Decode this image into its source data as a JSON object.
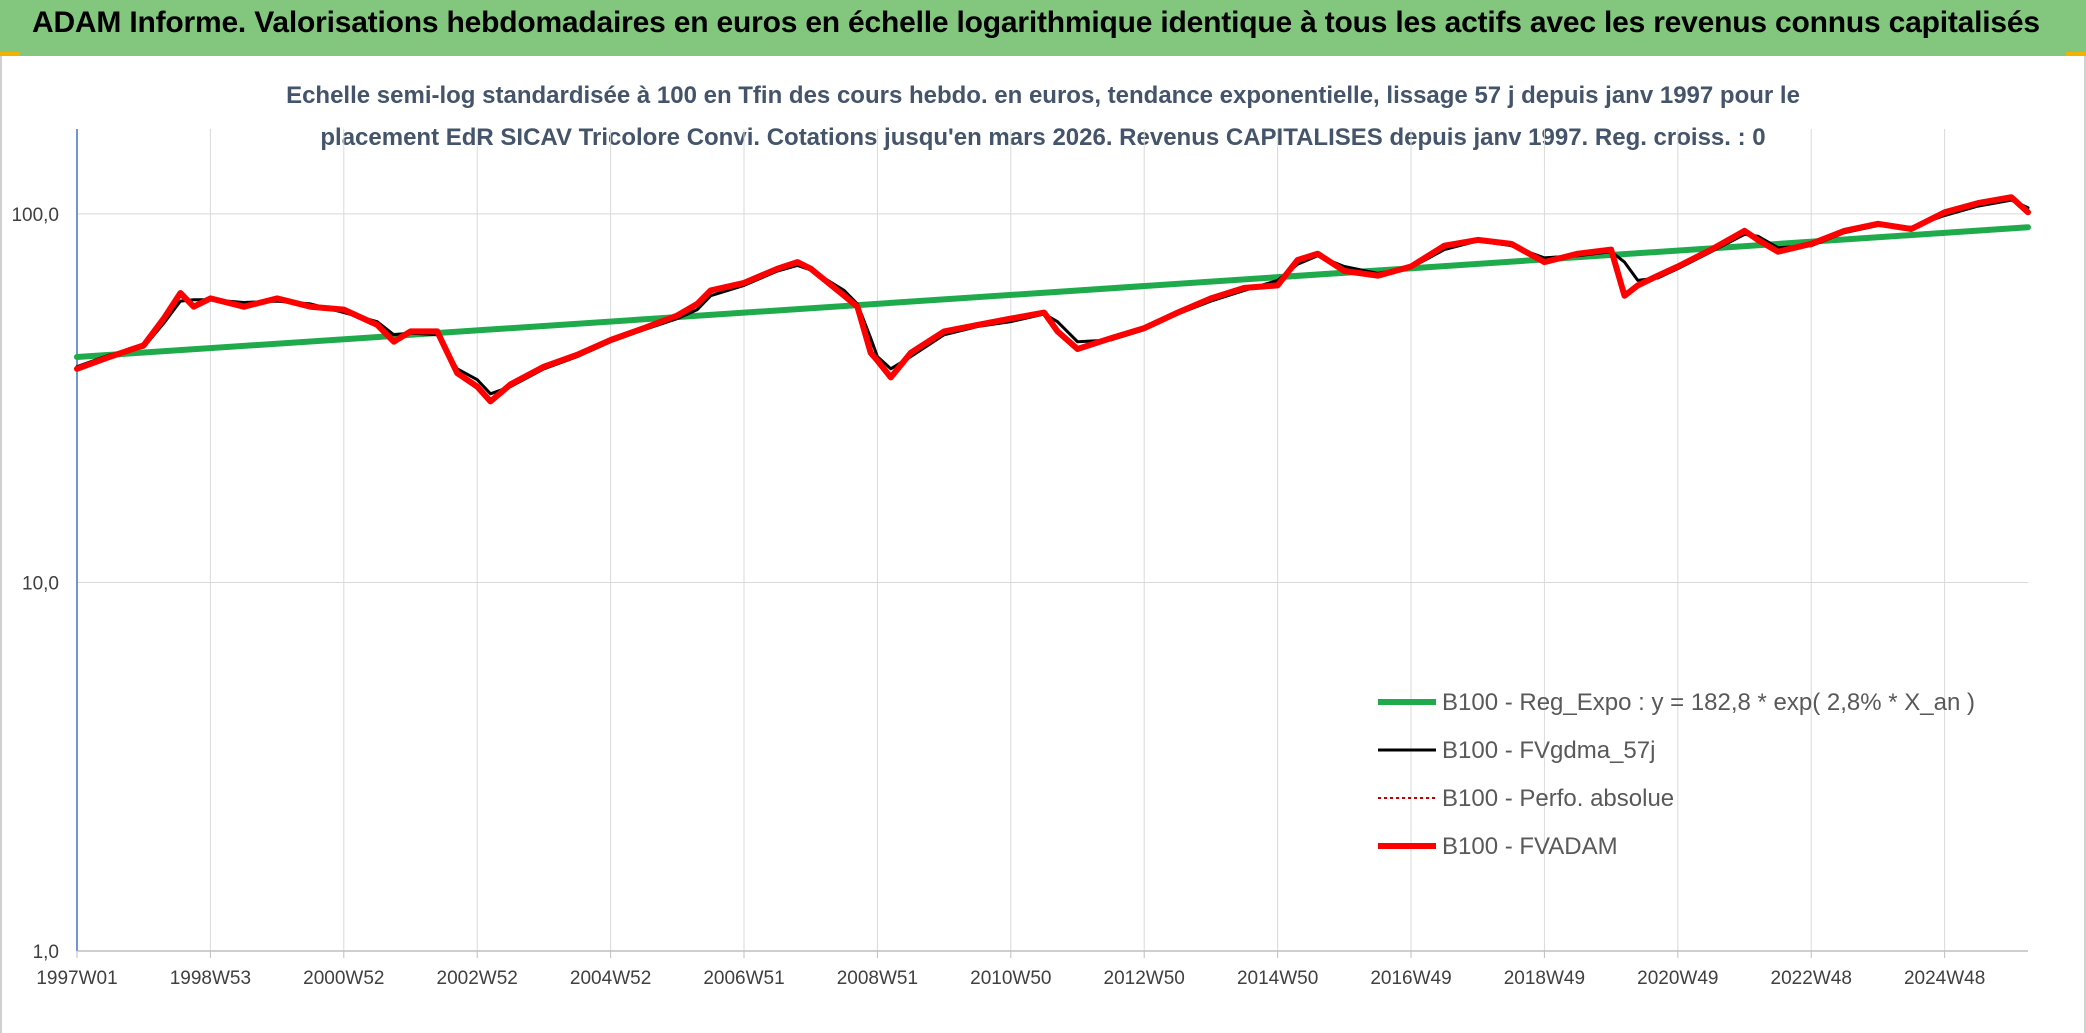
{
  "header": {
    "title": "ADAM Informe. Valorisations hebdomadaires en euros en échelle logarithmique identique à tous les actifs avec les revenus connus capitalisés"
  },
  "chart_data": {
    "type": "line",
    "title_lines": [
      "Echelle semi-log standardisée à 100 en Tfin des cours hebdo. en euros, tendance exponentielle, lissage 57 j depuis janv 1997 pour le",
      "placement EdR SICAV Tricolore Convi. Cotations jusqu'en mars 2026. Revenus CAPITALISES depuis janv 1997. Reg. croiss. : 0"
    ],
    "y_scale": "log",
    "ylim": [
      1,
      170
    ],
    "y_ticks": [
      {
        "value": 1,
        "label": "1,0"
      },
      {
        "value": 10,
        "label": "10,0"
      },
      {
        "value": 100,
        "label": "100,0"
      }
    ],
    "xlim": [
      1997.0,
      2026.25
    ],
    "x_ticks": [
      {
        "value": 1997.0,
        "label": "1997W01"
      },
      {
        "value": 1999.0,
        "label": "1998W53"
      },
      {
        "value": 2001.0,
        "label": "2000W52"
      },
      {
        "value": 2003.0,
        "label": "2002W52"
      },
      {
        "value": 2005.0,
        "label": "2004W52"
      },
      {
        "value": 2007.0,
        "label": "2006W51"
      },
      {
        "value": 2009.0,
        "label": "2008W51"
      },
      {
        "value": 2011.0,
        "label": "2010W50"
      },
      {
        "value": 2013.0,
        "label": "2012W50"
      },
      {
        "value": 2015.0,
        "label": "2014W50"
      },
      {
        "value": 2017.0,
        "label": "2016W49"
      },
      {
        "value": 2019.0,
        "label": "2018W49"
      },
      {
        "value": 2021.0,
        "label": "2020W49"
      },
      {
        "value": 2023.0,
        "label": "2022W48"
      },
      {
        "value": 2025.0,
        "label": "2024W48"
      }
    ],
    "grid": true,
    "legend_position": "bottom-right",
    "series": [
      {
        "name": "B100 - Reg_Expo : y = 182,8 * exp( 2,8% *  X_an )",
        "color": "#1faa4c",
        "style": "solid-thick",
        "points": [
          [
            1997.0,
            40.9
          ],
          [
            2026.25,
            92.0
          ]
        ]
      },
      {
        "name": "B100 - FVgdma_57j",
        "color": "#000000",
        "style": "solid",
        "points": [
          [
            1997.0,
            38.5
          ],
          [
            1997.5,
            41.5
          ],
          [
            1998.0,
            43.5
          ],
          [
            1998.3,
            50.5
          ],
          [
            1998.55,
            58.0
          ],
          [
            1998.75,
            58.5
          ],
          [
            1999.0,
            58.5
          ],
          [
            1999.5,
            57.5
          ],
          [
            2000.0,
            58.0
          ],
          [
            2000.5,
            57.0
          ],
          [
            2001.0,
            54.0
          ],
          [
            2001.5,
            51.0
          ],
          [
            2001.75,
            47.0
          ],
          [
            2002.0,
            47.5
          ],
          [
            2002.4,
            47.0
          ],
          [
            2002.7,
            38.0
          ],
          [
            2003.0,
            35.5
          ],
          [
            2003.2,
            32.5
          ],
          [
            2003.5,
            34.0
          ],
          [
            2004.0,
            38.0
          ],
          [
            2004.5,
            41.0
          ],
          [
            2005.0,
            45.0
          ],
          [
            2005.5,
            48.5
          ],
          [
            2006.0,
            52.0
          ],
          [
            2006.3,
            55.0
          ],
          [
            2006.5,
            60.0
          ],
          [
            2007.0,
            64.0
          ],
          [
            2007.5,
            70.0
          ],
          [
            2007.8,
            72.5
          ],
          [
            2008.0,
            70.5
          ],
          [
            2008.5,
            62.0
          ],
          [
            2008.7,
            57.0
          ],
          [
            2008.9,
            46.0
          ],
          [
            2009.0,
            41.0
          ],
          [
            2009.2,
            38.0
          ],
          [
            2009.5,
            41.0
          ],
          [
            2010.0,
            47.0
          ],
          [
            2010.5,
            49.5
          ],
          [
            2011.0,
            51.0
          ],
          [
            2011.5,
            53.5
          ],
          [
            2011.7,
            51.0
          ],
          [
            2012.0,
            45.0
          ],
          [
            2012.5,
            45.5
          ],
          [
            2013.0,
            48.5
          ],
          [
            2013.5,
            53.5
          ],
          [
            2014.0,
            58.0
          ],
          [
            2014.5,
            62.0
          ],
          [
            2015.0,
            66.0
          ],
          [
            2015.3,
            73.0
          ],
          [
            2015.6,
            77.0
          ],
          [
            2016.0,
            72.0
          ],
          [
            2016.5,
            69.0
          ],
          [
            2017.0,
            71.5
          ],
          [
            2017.5,
            80.0
          ],
          [
            2018.0,
            84.5
          ],
          [
            2018.5,
            82.0
          ],
          [
            2019.0,
            76.0
          ],
          [
            2019.5,
            77.0
          ],
          [
            2020.0,
            79.0
          ],
          [
            2020.2,
            74.0
          ],
          [
            2020.4,
            66.0
          ],
          [
            2020.7,
            67.0
          ],
          [
            2021.0,
            71.0
          ],
          [
            2021.5,
            79.0
          ],
          [
            2022.0,
            88.0
          ],
          [
            2022.2,
            87.0
          ],
          [
            2022.5,
            81.0
          ],
          [
            2023.0,
            82.0
          ],
          [
            2023.5,
            89.0
          ],
          [
            2024.0,
            93.0
          ],
          [
            2024.5,
            92.0
          ],
          [
            2025.0,
            99.0
          ],
          [
            2025.5,
            105.0
          ],
          [
            2026.0,
            109.0
          ],
          [
            2026.25,
            104.0
          ]
        ]
      },
      {
        "name": "B100 - Perfo. absolue",
        "color": "#c00000",
        "style": "dotted",
        "points": [
          [
            1997.0,
            38.0
          ],
          [
            1997.5,
            41.0
          ],
          [
            1998.0,
            44.0
          ],
          [
            1998.3,
            52.0
          ],
          [
            1998.55,
            61.0
          ],
          [
            1998.75,
            56.0
          ],
          [
            1999.0,
            59.0
          ],
          [
            1999.5,
            56.0
          ],
          [
            2000.0,
            59.0
          ],
          [
            2000.5,
            56.0
          ],
          [
            2001.0,
            55.0
          ],
          [
            2001.5,
            50.0
          ],
          [
            2001.75,
            45.0
          ],
          [
            2002.0,
            48.0
          ],
          [
            2002.4,
            48.0
          ],
          [
            2002.7,
            37.0
          ],
          [
            2003.0,
            34.0
          ],
          [
            2003.2,
            31.0
          ],
          [
            2003.5,
            34.5
          ],
          [
            2004.0,
            38.5
          ],
          [
            2004.5,
            41.5
          ],
          [
            2005.0,
            45.5
          ],
          [
            2005.5,
            49.0
          ],
          [
            2006.0,
            53.0
          ],
          [
            2006.3,
            57.0
          ],
          [
            2006.5,
            62.0
          ],
          [
            2007.0,
            65.0
          ],
          [
            2007.5,
            71.0
          ],
          [
            2007.8,
            74.0
          ],
          [
            2008.0,
            71.0
          ],
          [
            2008.5,
            60.0
          ],
          [
            2008.7,
            56.0
          ],
          [
            2008.9,
            42.0
          ],
          [
            2009.0,
            40.0
          ],
          [
            2009.2,
            36.0
          ],
          [
            2009.5,
            42.0
          ],
          [
            2010.0,
            48.0
          ],
          [
            2010.5,
            50.0
          ],
          [
            2011.0,
            52.0
          ],
          [
            2011.5,
            54.0
          ],
          [
            2011.7,
            48.0
          ],
          [
            2012.0,
            43.0
          ],
          [
            2012.5,
            46.0
          ],
          [
            2013.0,
            49.0
          ],
          [
            2013.5,
            54.0
          ],
          [
            2014.0,
            59.0
          ],
          [
            2014.5,
            63.0
          ],
          [
            2015.0,
            64.0
          ],
          [
            2015.3,
            75.0
          ],
          [
            2015.6,
            78.0
          ],
          [
            2016.0,
            70.0
          ],
          [
            2016.5,
            68.0
          ],
          [
            2017.0,
            72.0
          ],
          [
            2017.5,
            82.0
          ],
          [
            2018.0,
            85.0
          ],
          [
            2018.5,
            83.0
          ],
          [
            2019.0,
            74.0
          ],
          [
            2019.5,
            78.0
          ],
          [
            2020.0,
            80.0
          ],
          [
            2020.2,
            60.0
          ],
          [
            2020.4,
            64.0
          ],
          [
            2020.7,
            68.0
          ],
          [
            2021.0,
            72.0
          ],
          [
            2021.5,
            80.0
          ],
          [
            2022.0,
            90.0
          ],
          [
            2022.2,
            85.0
          ],
          [
            2022.5,
            79.0
          ],
          [
            2023.0,
            83.0
          ],
          [
            2023.5,
            90.0
          ],
          [
            2024.0,
            94.0
          ],
          [
            2024.5,
            91.0
          ],
          [
            2025.0,
            101.0
          ],
          [
            2025.5,
            107.0
          ],
          [
            2026.0,
            111.0
          ],
          [
            2026.25,
            101.0
          ]
        ]
      },
      {
        "name": "B100 - FVADAM",
        "color": "#ff0000",
        "style": "solid-thick",
        "points": [
          [
            1997.0,
            38.0
          ],
          [
            1997.5,
            41.0
          ],
          [
            1998.0,
            44.0
          ],
          [
            1998.3,
            52.0
          ],
          [
            1998.55,
            61.0
          ],
          [
            1998.75,
            56.0
          ],
          [
            1999.0,
            59.0
          ],
          [
            1999.5,
            56.0
          ],
          [
            2000.0,
            59.0
          ],
          [
            2000.5,
            56.0
          ],
          [
            2001.0,
            55.0
          ],
          [
            2001.5,
            50.0
          ],
          [
            2001.75,
            45.0
          ],
          [
            2002.0,
            48.0
          ],
          [
            2002.4,
            48.0
          ],
          [
            2002.7,
            37.0
          ],
          [
            2003.0,
            34.0
          ],
          [
            2003.2,
            31.0
          ],
          [
            2003.5,
            34.5
          ],
          [
            2004.0,
            38.5
          ],
          [
            2004.5,
            41.5
          ],
          [
            2005.0,
            45.5
          ],
          [
            2005.5,
            49.0
          ],
          [
            2006.0,
            53.0
          ],
          [
            2006.3,
            57.0
          ],
          [
            2006.5,
            62.0
          ],
          [
            2007.0,
            65.0
          ],
          [
            2007.5,
            71.0
          ],
          [
            2007.8,
            74.0
          ],
          [
            2008.0,
            71.0
          ],
          [
            2008.5,
            60.0
          ],
          [
            2008.7,
            56.0
          ],
          [
            2008.9,
            42.0
          ],
          [
            2009.0,
            40.0
          ],
          [
            2009.2,
            36.0
          ],
          [
            2009.5,
            42.0
          ],
          [
            2010.0,
            48.0
          ],
          [
            2010.5,
            50.0
          ],
          [
            2011.0,
            52.0
          ],
          [
            2011.5,
            54.0
          ],
          [
            2011.7,
            48.0
          ],
          [
            2012.0,
            43.0
          ],
          [
            2012.5,
            46.0
          ],
          [
            2013.0,
            49.0
          ],
          [
            2013.5,
            54.0
          ],
          [
            2014.0,
            59.0
          ],
          [
            2014.5,
            63.0
          ],
          [
            2015.0,
            64.0
          ],
          [
            2015.3,
            75.0
          ],
          [
            2015.6,
            78.0
          ],
          [
            2016.0,
            70.0
          ],
          [
            2016.5,
            68.0
          ],
          [
            2017.0,
            72.0
          ],
          [
            2017.5,
            82.0
          ],
          [
            2018.0,
            85.0
          ],
          [
            2018.5,
            83.0
          ],
          [
            2019.0,
            74.0
          ],
          [
            2019.5,
            78.0
          ],
          [
            2020.0,
            80.0
          ],
          [
            2020.2,
            60.0
          ],
          [
            2020.4,
            64.0
          ],
          [
            2020.7,
            68.0
          ],
          [
            2021.0,
            72.0
          ],
          [
            2021.5,
            80.0
          ],
          [
            2022.0,
            90.0
          ],
          [
            2022.2,
            85.0
          ],
          [
            2022.5,
            79.0
          ],
          [
            2023.0,
            83.0
          ],
          [
            2023.5,
            90.0
          ],
          [
            2024.0,
            94.0
          ],
          [
            2024.5,
            91.0
          ],
          [
            2025.0,
            101.0
          ],
          [
            2025.5,
            107.0
          ],
          [
            2026.0,
            111.0
          ],
          [
            2026.25,
            101.0
          ]
        ]
      }
    ]
  }
}
